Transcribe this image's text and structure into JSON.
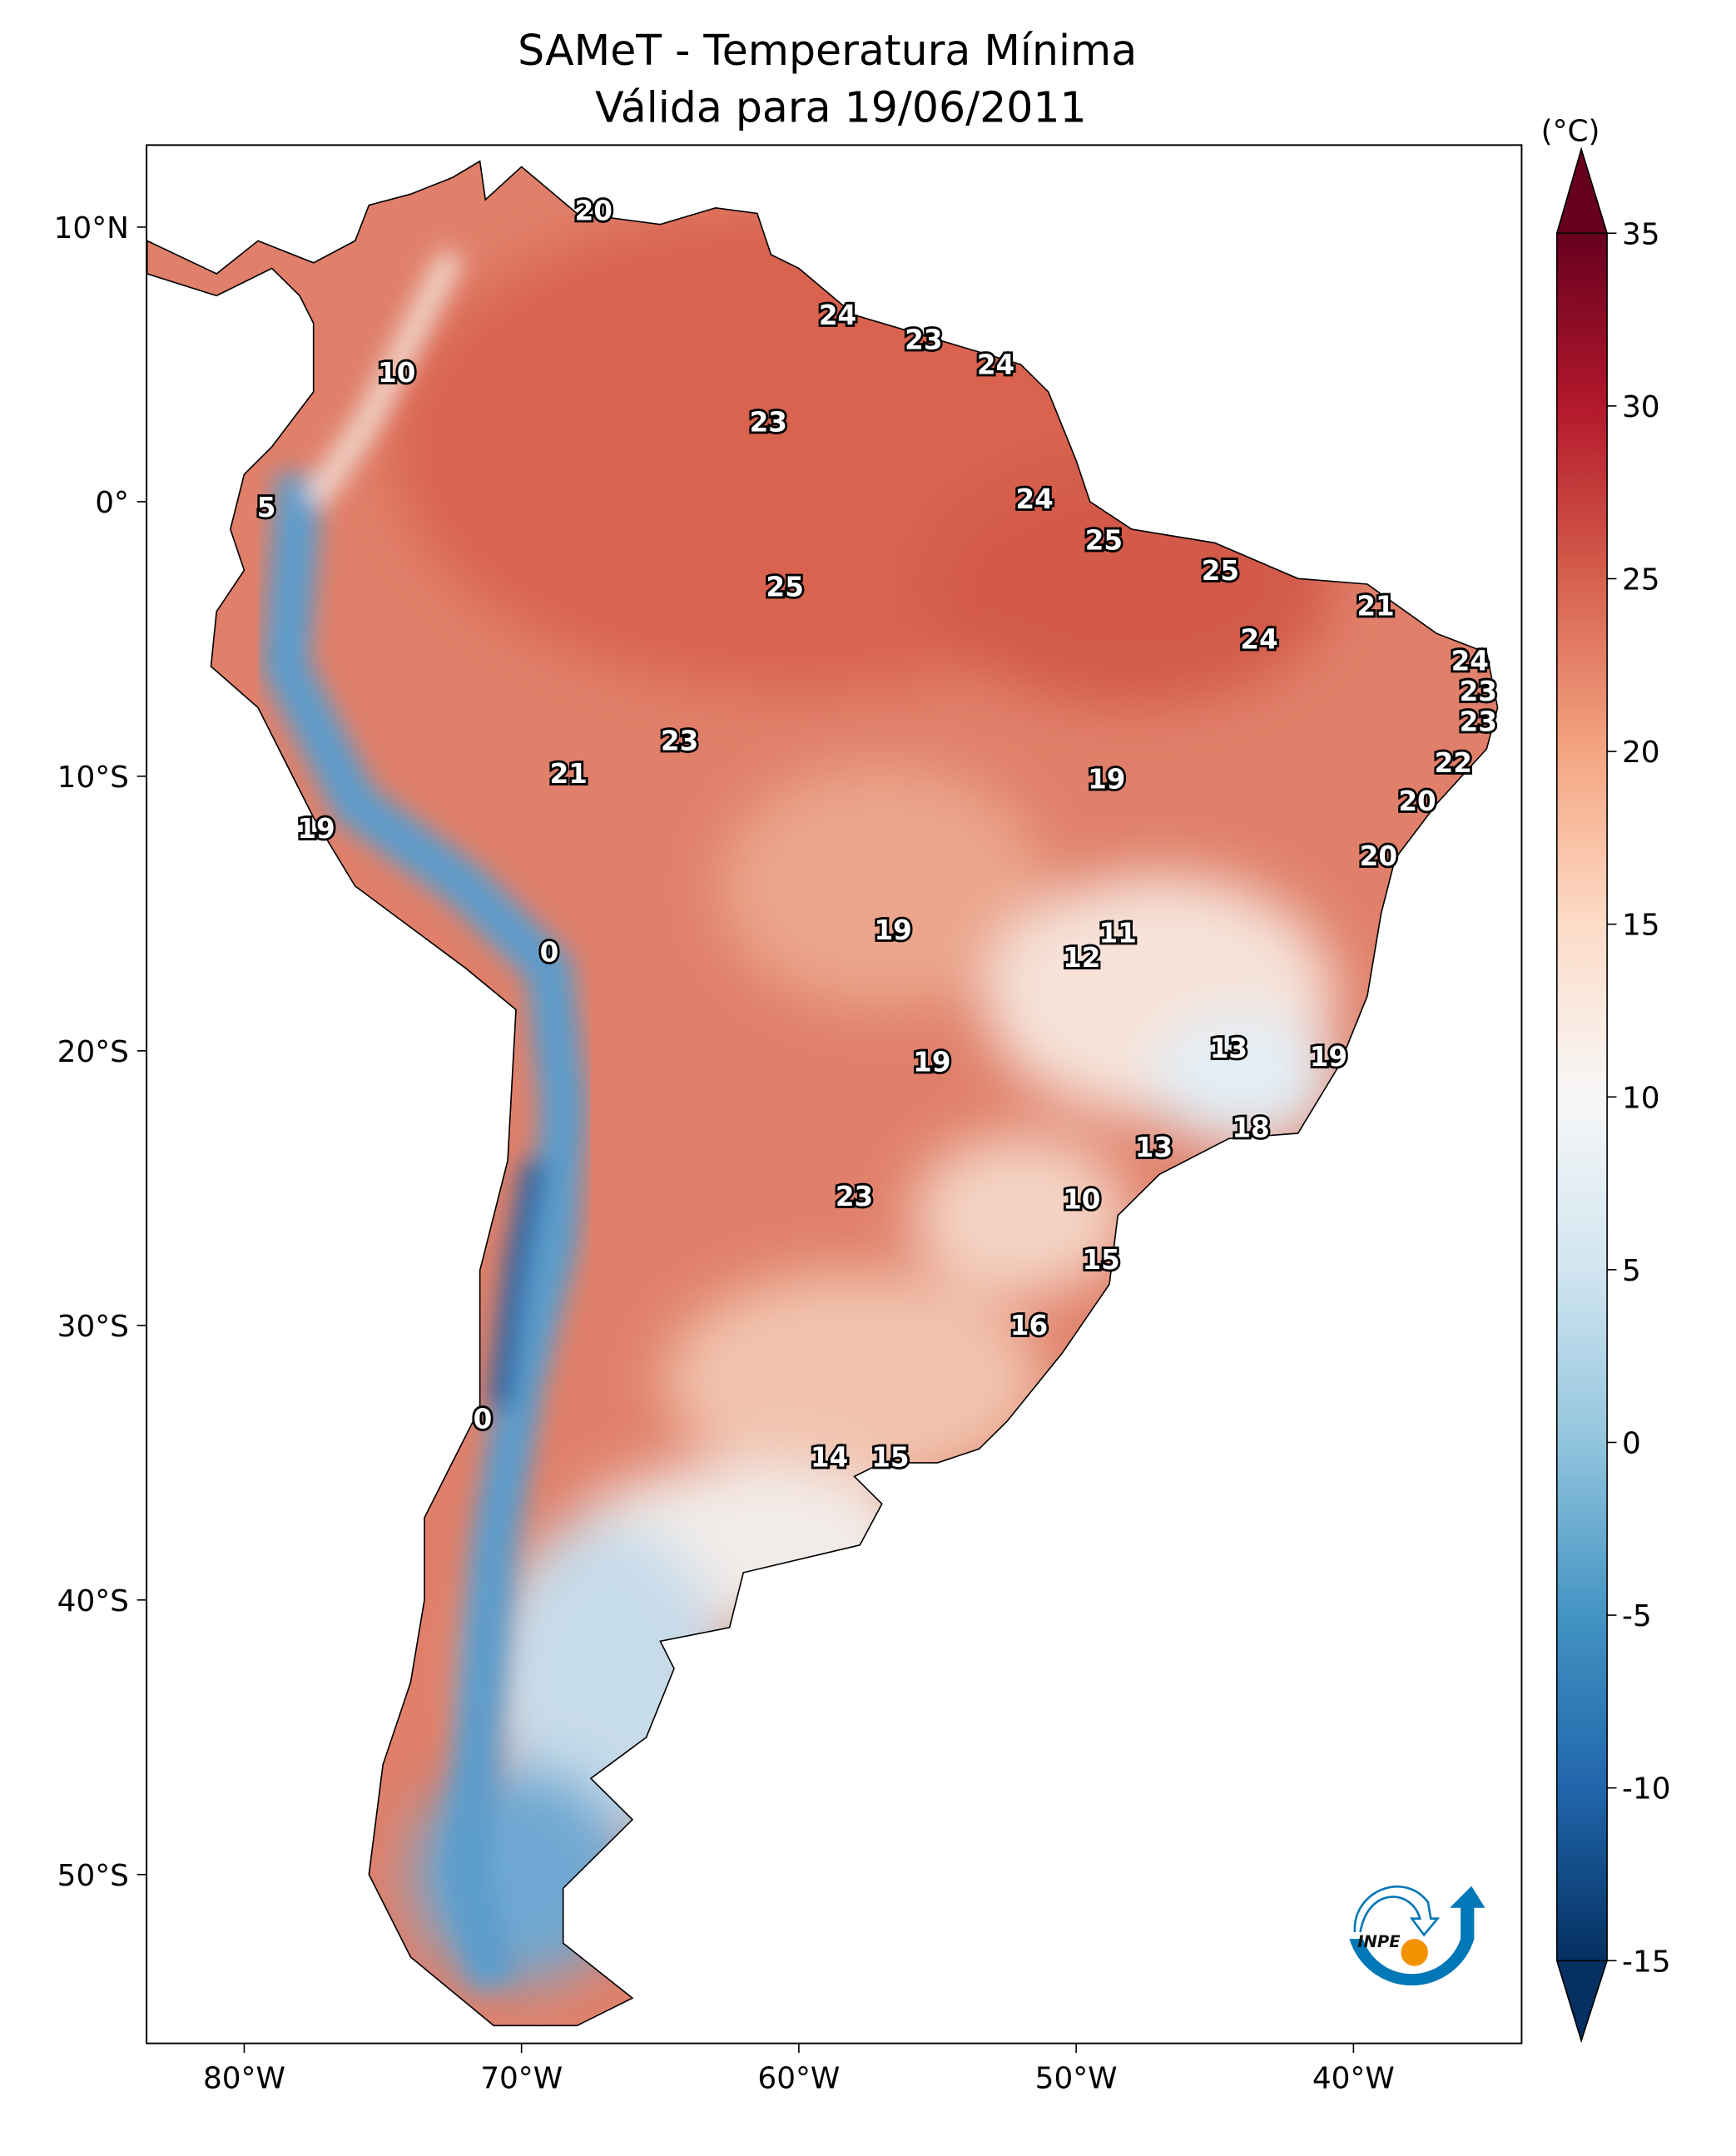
{
  "title": {
    "line1": "SAMeT - Temperatura Mínima",
    "line2": "Válida para 19/06/2011"
  },
  "colorbar": {
    "unit_label": "(°C)",
    "min": -15,
    "max": 35,
    "ticks": [
      "35",
      "30",
      "25",
      "20",
      "15",
      "10",
      "5",
      "0",
      "-5",
      "-10",
      "-15"
    ],
    "tick_values": [
      35,
      30,
      25,
      20,
      15,
      10,
      5,
      0,
      -5,
      -10,
      -15
    ],
    "colormap": [
      "#053061",
      "#2166ac",
      "#4393c3",
      "#92c5de",
      "#d1e5f0",
      "#f7f7f7",
      "#fddbc7",
      "#f4a582",
      "#d6604d",
      "#b2182b",
      "#67001f"
    ]
  },
  "axes": {
    "x_ticks": [
      {
        "label": "80°W",
        "lon": -80
      },
      {
        "label": "70°W",
        "lon": -70
      },
      {
        "label": "60°W",
        "lon": -60
      },
      {
        "label": "50°W",
        "lon": -50
      },
      {
        "label": "40°W",
        "lon": -40
      }
    ],
    "y_ticks": [
      {
        "label": "10°N",
        "lat": 10
      },
      {
        "label": "0°",
        "lat": 0
      },
      {
        "label": "10°S",
        "lat": -10
      },
      {
        "label": "20°S",
        "lat": -20
      },
      {
        "label": "30°S",
        "lat": -30
      },
      {
        "label": "40°S",
        "lat": -40
      },
      {
        "label": "50°S",
        "lat": -50
      }
    ],
    "lon_range": [
      -83.5,
      -33.9
    ],
    "lat_range": [
      -56,
      13
    ]
  },
  "station_labels": [
    {
      "v": "20",
      "lon": -67.4,
      "lat": 10.6
    },
    {
      "v": "24",
      "lon": -58.6,
      "lat": 6.8
    },
    {
      "v": "23",
      "lon": -55.5,
      "lat": 5.9
    },
    {
      "v": "24",
      "lon": -52.9,
      "lat": 5.0
    },
    {
      "v": "10",
      "lon": -74.5,
      "lat": 4.7
    },
    {
      "v": "23",
      "lon": -61.1,
      "lat": 2.9
    },
    {
      "v": "5",
      "lon": -79.2,
      "lat": -0.2
    },
    {
      "v": "24",
      "lon": -51.5,
      "lat": 0.1
    },
    {
      "v": "25",
      "lon": -49.0,
      "lat": -1.4
    },
    {
      "v": "25",
      "lon": -44.8,
      "lat": -2.5
    },
    {
      "v": "25",
      "lon": -60.5,
      "lat": -3.1
    },
    {
      "v": "21",
      "lon": -39.2,
      "lat": -3.8
    },
    {
      "v": "24",
      "lon": -43.4,
      "lat": -5.0
    },
    {
      "v": "24",
      "lon": -35.8,
      "lat": -5.8
    },
    {
      "v": "23",
      "lon": -35.5,
      "lat": -6.9
    },
    {
      "v": "23",
      "lon": -35.5,
      "lat": -8.0
    },
    {
      "v": "23",
      "lon": -64.3,
      "lat": -8.7
    },
    {
      "v": "22",
      "lon": -36.4,
      "lat": -9.5
    },
    {
      "v": "21",
      "lon": -68.3,
      "lat": -9.9
    },
    {
      "v": "19",
      "lon": -48.9,
      "lat": -10.1
    },
    {
      "v": "20",
      "lon": -37.7,
      "lat": -10.9
    },
    {
      "v": "19",
      "lon": -77.4,
      "lat": -11.9
    },
    {
      "v": "20",
      "lon": -39.1,
      "lat": -12.9
    },
    {
      "v": "19",
      "lon": -56.6,
      "lat": -15.6
    },
    {
      "v": "11",
      "lon": -48.5,
      "lat": -15.7
    },
    {
      "v": "12",
      "lon": -49.8,
      "lat": -16.6
    },
    {
      "v": "0",
      "lon": -69.0,
      "lat": -16.4
    },
    {
      "v": "13",
      "lon": -44.5,
      "lat": -19.9
    },
    {
      "v": "19",
      "lon": -40.9,
      "lat": -20.2
    },
    {
      "v": "19",
      "lon": -55.2,
      "lat": -20.4
    },
    {
      "v": "18",
      "lon": -43.7,
      "lat": -22.8
    },
    {
      "v": "13",
      "lon": -47.2,
      "lat": -23.5
    },
    {
      "v": "23",
      "lon": -58.0,
      "lat": -25.3
    },
    {
      "v": "10",
      "lon": -49.8,
      "lat": -25.4
    },
    {
      "v": "15",
      "lon": -49.1,
      "lat": -27.6
    },
    {
      "v": "16",
      "lon": -51.7,
      "lat": -30.0
    },
    {
      "v": "0",
      "lon": -71.4,
      "lat": -33.4
    },
    {
      "v": "14",
      "lon": -58.9,
      "lat": -34.8
    },
    {
      "v": "15",
      "lon": -56.7,
      "lat": -34.8
    }
  ],
  "logo": {
    "text": "INPE",
    "blue": "#0077b6",
    "orange": "#f39200"
  }
}
